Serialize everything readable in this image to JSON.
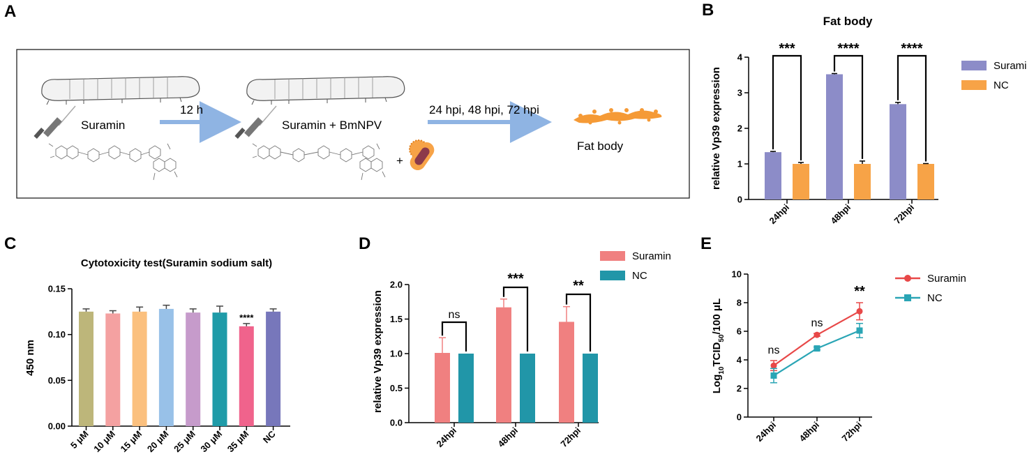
{
  "panels": {
    "A": "A",
    "B": "B",
    "C": "C",
    "D": "D",
    "E": "E"
  },
  "schematic": {
    "step1": "Suramin",
    "arrow1": "12 h",
    "step2": "Suramin + BmNPV",
    "plus": "+",
    "arrow2": "24 hpi, 48 hpi, 72 hpi",
    "result": "Fat body"
  },
  "colors": {
    "B_suramin": "#8c8cc8",
    "B_nc": "#f7a347",
    "D_suramin": "#f08080",
    "D_nc": "#2196a8",
    "E_suramin": "#e84848",
    "E_nc": "#2aa5b5",
    "arrow": "#8fb4e3"
  },
  "chart_data": [
    {
      "panel": "B",
      "type": "bar",
      "title": "Fat body",
      "ylabel": "relative Vp39 expression",
      "xlabel": "",
      "ylim": [
        0,
        4
      ],
      "yticks": [
        "0",
        "1",
        "2",
        "3",
        "4"
      ],
      "categories": [
        "24hpi",
        "48hpi",
        "72hpi"
      ],
      "series": [
        {
          "name": "Suramin",
          "values": [
            1.33,
            3.52,
            2.68
          ],
          "errors": [
            0.02,
            0.02,
            0.05
          ]
        },
        {
          "name": "NC",
          "values": [
            1.0,
            1.0,
            1.0
          ],
          "errors": [
            0.04,
            0.08,
            0.01
          ]
        }
      ],
      "significance": [
        "***",
        "****",
        "****"
      ]
    },
    {
      "panel": "C",
      "type": "bar",
      "title": "Cytotoxicity test(Suramin sodium salt)",
      "ylabel": "450 nm",
      "xlabel": "",
      "ylim": [
        0,
        0.15
      ],
      "yticks": [
        "0.00",
        "0.05",
        "0.10",
        "0.15"
      ],
      "categories": [
        "5 μM",
        "10 μM",
        "15 μM",
        "20 μM",
        "25 μM",
        "30 μM",
        "35 μM",
        "NC"
      ],
      "values": [
        0.125,
        0.123,
        0.125,
        0.128,
        0.124,
        0.124,
        0.109,
        0.125
      ],
      "errors": [
        0.003,
        0.003,
        0.005,
        0.004,
        0.004,
        0.007,
        0.003,
        0.003
      ],
      "bar_colors": [
        "#bdb67a",
        "#f4a1a1",
        "#fbc07e",
        "#98c1e8",
        "#c69bcb",
        "#1f9ba8",
        "#f0638c",
        "#7777bb"
      ],
      "significance": [
        "",
        "",
        "",
        "",
        "",
        "",
        "****",
        ""
      ]
    },
    {
      "panel": "D",
      "type": "bar",
      "title": "",
      "ylabel": "relative Vp39 expression",
      "xlabel": "",
      "ylim": [
        0,
        2.0
      ],
      "yticks": [
        "0.0",
        "0.5",
        "1.0",
        "1.5",
        "2.0"
      ],
      "categories": [
        "24hpi",
        "48hpi",
        "72hpi"
      ],
      "series": [
        {
          "name": "Suramin",
          "values": [
            1.01,
            1.67,
            1.46
          ],
          "errors": [
            0.22,
            0.12,
            0.22
          ]
        },
        {
          "name": "NC",
          "values": [
            1.0,
            1.0,
            1.0
          ],
          "errors": [
            0,
            0,
            0
          ]
        }
      ],
      "significance": [
        "ns",
        "***",
        "**"
      ]
    },
    {
      "panel": "E",
      "type": "line",
      "title": "",
      "ylabel": "Log10TCID50/100 μL",
      "ylabel_parts": [
        "Log",
        "10",
        "TCID",
        "50",
        "/100 μL"
      ],
      "xlabel": "",
      "ylim": [
        0,
        10
      ],
      "yticks": [
        "0",
        "2",
        "4",
        "6",
        "8",
        "10"
      ],
      "categories": [
        "24hpi",
        "48hpi",
        "72hpi"
      ],
      "series": [
        {
          "name": "Suramin",
          "values": [
            3.6,
            5.75,
            7.4
          ],
          "errors": [
            0.35,
            0.1,
            0.6
          ]
        },
        {
          "name": "NC",
          "values": [
            2.9,
            4.8,
            6.05
          ],
          "errors": [
            0.5,
            0.1,
            0.5
          ]
        }
      ],
      "significance": [
        "ns",
        "ns",
        "**"
      ]
    }
  ]
}
